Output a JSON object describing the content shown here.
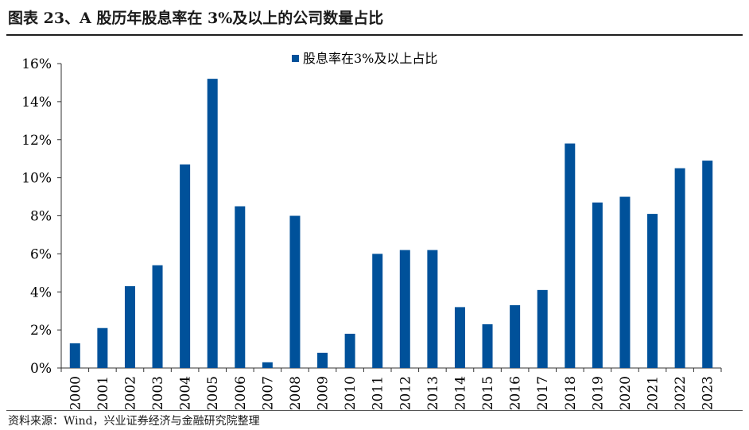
{
  "header": {
    "title": "图表 23、A 股历年股息率在 3%及以上的公司数量占比"
  },
  "footer": {
    "source": "资料来源：Wind，兴业证券经济与金融研究院整理"
  },
  "colors": {
    "bar": "#00519A",
    "axis": "#333333",
    "text": "#000000"
  },
  "chart_data": {
    "type": "bar",
    "title": "",
    "xlabel": "",
    "ylabel": "",
    "categories": [
      "2000",
      "2001",
      "2002",
      "2003",
      "2004",
      "2005",
      "2006",
      "2007",
      "2008",
      "2009",
      "2010",
      "2011",
      "2012",
      "2013",
      "2014",
      "2015",
      "2016",
      "2017",
      "2018",
      "2019",
      "2020",
      "2021",
      "2022",
      "2023"
    ],
    "series": [
      {
        "name": "股息率在3%及以上占比",
        "values": [
          1.3,
          2.1,
          4.3,
          5.4,
          10.7,
          15.2,
          8.5,
          0.3,
          8.0,
          0.8,
          1.8,
          6.0,
          6.2,
          6.2,
          3.2,
          2.3,
          3.3,
          4.1,
          11.8,
          8.7,
          9.0,
          8.1,
          10.5,
          10.9
        ]
      }
    ],
    "ylim": [
      0,
      16
    ],
    "yticks": [
      0,
      2,
      4,
      6,
      8,
      10,
      12,
      14,
      16
    ],
    "ytick_labels": [
      "0%",
      "2%",
      "4%",
      "6%",
      "8%",
      "10%",
      "12%",
      "14%",
      "16%"
    ],
    "grid": false,
    "legend_position": "top-center"
  }
}
